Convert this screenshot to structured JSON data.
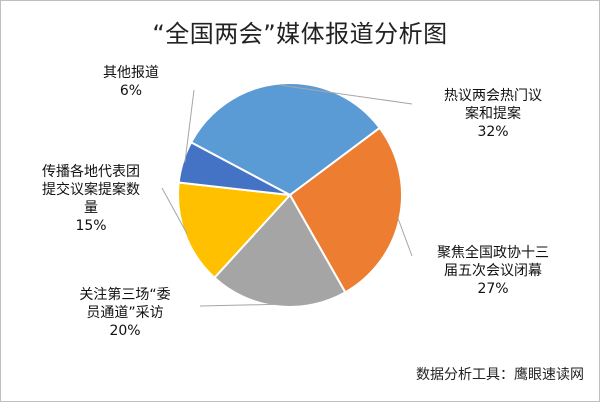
{
  "chart_data": {
    "type": "pie",
    "title": "“全国两会”媒体报道分析图",
    "slices": [
      {
        "label": "热议两会热门议案和提案",
        "label_lines": [
          "热议两会热门议",
          "案和提案"
        ],
        "value": 32,
        "value_label": "32%",
        "color": "#5B9BD5"
      },
      {
        "label": "聚焦全国政协十三届五次会议闭幕",
        "label_lines": [
          "聚焦全国政协十三",
          "届五次会议闭幕"
        ],
        "value": 27,
        "value_label": "27%",
        "color": "#ED7D31"
      },
      {
        "label": "关注第三场“委员通道”采访",
        "label_lines": [
          "关注第三场“委",
          "员通道”采访"
        ],
        "value": 20,
        "value_label": "20%",
        "color": "#A5A5A5"
      },
      {
        "label": "传播各地代表团提交议案提案数量",
        "label_lines": [
          "传播各地代表团",
          "提交议案提案数",
          "量"
        ],
        "value": 15,
        "value_label": "15%",
        "color": "#FFC000"
      },
      {
        "label": "其他报道",
        "label_lines": [
          "其他报道"
        ],
        "value": 6,
        "value_label": "6%",
        "color": "#4472C4"
      }
    ],
    "legend": "none",
    "source": "数据分析工具：鹰眼速读网"
  }
}
